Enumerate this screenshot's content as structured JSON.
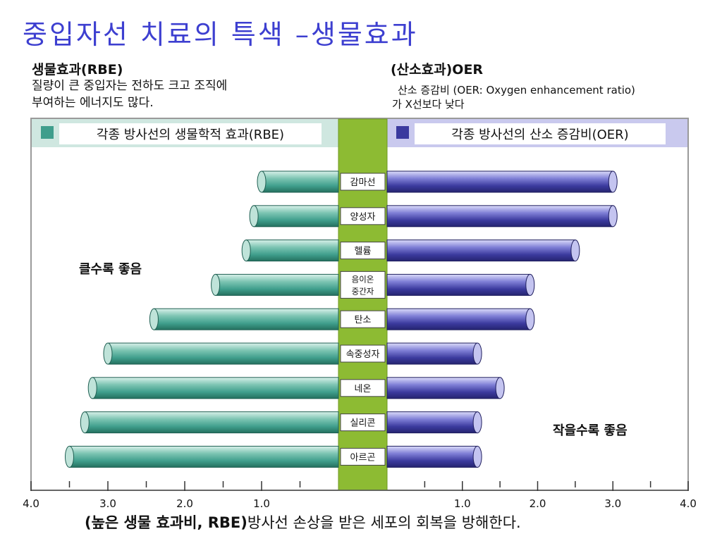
{
  "title": "중입자선 치료의 특색 –생물효과",
  "left_note": {
    "heading": "생물효과(RBE)",
    "line1": "질량이 큰 중입자는 전하도 크고 조직에",
    "line2": "부여하는 에너지도 많다."
  },
  "right_note": {
    "heading": "(산소효과)OER",
    "line1": "산소 증감비 (OER: Oxygen enhancement ratio)",
    "line2": "가 X선보다 낮다"
  },
  "footer": {
    "bold_part": "(높은 생물 효과비, RBE)",
    "rest": "방사선 손상을 받은 세포의 회복을 방해한다."
  },
  "colors": {
    "title": "#3d3fd0",
    "rbe_bar": "#3f9e8c",
    "oer_bar": "#3b3a9e",
    "center_column": "#8dbb33",
    "rbe_legend_band": "#cfe7e0",
    "oer_legend_band": "#c9c9ee"
  },
  "chart_data": {
    "type": "bar",
    "orientation": "horizontal-butterfly",
    "categories": [
      "감마선",
      "양성자",
      "헬륨",
      "음이온\n중간자",
      "탄소",
      "속중성자",
      "네온",
      "실리콘",
      "아르곤"
    ],
    "series": [
      {
        "name": "각종 방사선의 생물학적 효과(RBE)",
        "side": "left",
        "values": [
          1.0,
          1.1,
          1.2,
          1.6,
          2.4,
          3.0,
          3.2,
          3.3,
          3.5
        ]
      },
      {
        "name": "각종 방사선의 산소 증감비(OER)",
        "side": "right",
        "values": [
          3.0,
          3.0,
          2.5,
          1.9,
          1.9,
          1.2,
          1.5,
          1.2,
          1.2
        ]
      }
    ],
    "left_axis": {
      "ticks": [
        "4.0",
        "3.0",
        "2.0",
        "1.0"
      ],
      "range": [
        0,
        4
      ]
    },
    "right_axis": {
      "ticks": [
        "1.0",
        "2.0",
        "3.0",
        "4.0"
      ],
      "range": [
        0,
        4
      ]
    },
    "annotations": {
      "left": "클수록 좋음",
      "right": "작을수록 좋음"
    }
  }
}
